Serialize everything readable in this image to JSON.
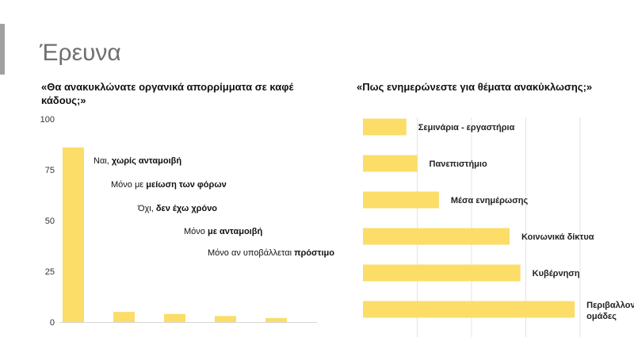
{
  "slide": {
    "title": "Έρευνα"
  },
  "colors": {
    "bar": "#fbdd68",
    "grid": "#e3e3e3",
    "accent": "#a0a0a0"
  },
  "chart_data": [
    {
      "type": "bar",
      "title": "«Θα ανακυκλώνατε οργανικά απορρίμματα σε καφέ κάδους;»",
      "categories": [
        [
          {
            "text": "Ναι, ",
            "bold": false
          },
          {
            "text": "χωρίς ανταμοιβή",
            "bold": true
          }
        ],
        [
          {
            "text": "Μόνο με ",
            "bold": false
          },
          {
            "text": "μείωση των φόρων",
            "bold": true
          }
        ],
        [
          {
            "text": "Όχι, ",
            "bold": false
          },
          {
            "text": "δεν έχω χρόνο",
            "bold": true
          }
        ],
        [
          {
            "text": "Μόνο ",
            "bold": false
          },
          {
            "text": "με ανταμοιβή",
            "bold": true
          }
        ],
        [
          {
            "text": "Μόνο αν υποβάλλεται ",
            "bold": false
          },
          {
            "text": "πρόστιμο",
            "bold": true
          }
        ]
      ],
      "values": [
        86,
        5,
        4,
        3,
        2
      ],
      "ylim": [
        0,
        100
      ],
      "yticks": [
        0,
        25,
        50,
        75,
        100
      ],
      "grid": false,
      "legend": "none"
    },
    {
      "type": "bar",
      "orientation": "horizontal",
      "title": "«Πως ενημερώνεστε για θέματα ανακύκλωσης;»",
      "categories": [
        "Σεμινάρια - εργαστήρια",
        "Πανεπιστήμιο",
        "Μέσα ενημέρωσης",
        "Κοινωνικά δίκτυα",
        "Κυβέρνηση",
        "Περιβαλλοντικές ομάδες"
      ],
      "values": [
        8,
        10,
        14,
        27,
        29,
        39
      ],
      "xlim": [
        0,
        40
      ],
      "grid": true,
      "axis_labels_shown": false,
      "legend": "none"
    }
  ]
}
